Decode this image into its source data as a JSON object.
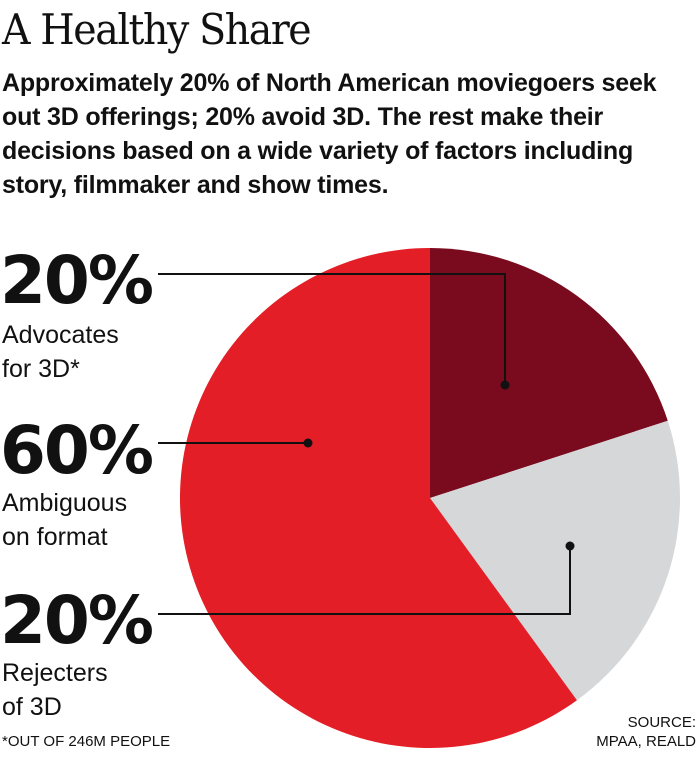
{
  "title": "A Healthy Share",
  "subtitle": "Approximately 20% of North American moviegoers seek out 3D offerings; 20% avoid 3D. The rest make their decisions based on a wide variety of factors including story, filmmaker and show times.",
  "footnote": "*OUT OF 246M PEOPLE",
  "source": {
    "line1": "SOURCE:",
    "line2": "MPAA, REALD"
  },
  "colors": {
    "advocates": "#7a0a1e",
    "rejecters": "#d6d7d9",
    "ambiguous": "#e31e26",
    "leader": "#111111"
  },
  "chart_data": {
    "type": "pie",
    "start": "12 o'clock, clockwise",
    "slices": [
      {
        "pct_label": "20%",
        "line1": "Advocates",
        "line2": "for 3D*",
        "value": 20,
        "color": "#7a0a1e"
      },
      {
        "pct_label": "20%",
        "line1": "Rejecters",
        "line2": "of 3D",
        "value": 20,
        "color": "#d6d7d9"
      },
      {
        "pct_label": "60%",
        "line1": "Ambiguous",
        "line2": "on format",
        "value": 60,
        "color": "#e31e26"
      }
    ]
  }
}
